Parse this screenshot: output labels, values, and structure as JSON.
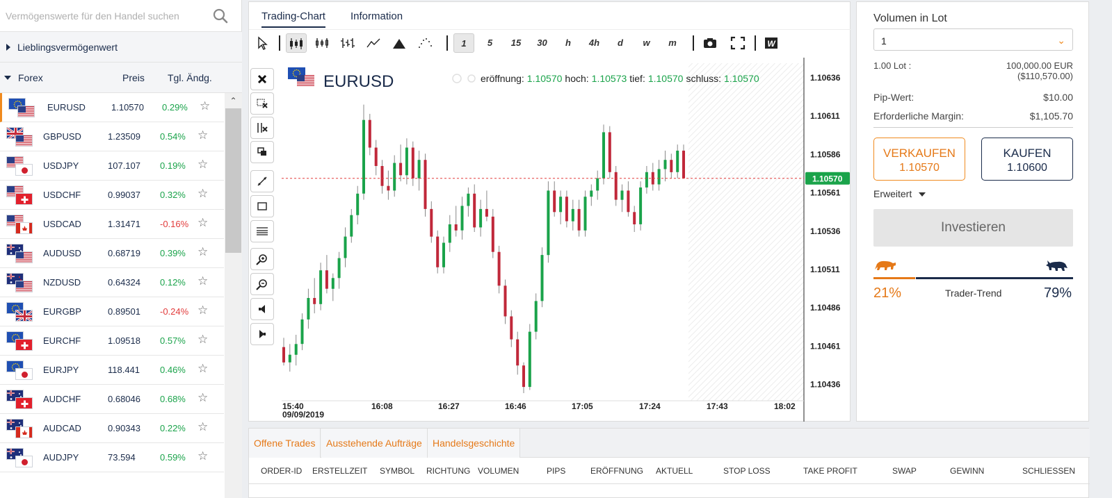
{
  "search": {
    "placeholder": "Vermögenswerte für den Handel suchen"
  },
  "sidebar": {
    "favorites_label": "Lieblingsvermögenwert",
    "forex_label": "Forex",
    "col_price": "Preis",
    "col_change": "Tgl. Ändg.",
    "items": [
      {
        "symbol": "EURUSD",
        "price": "1.10570",
        "change": "0.29%",
        "dir": "pos",
        "f1": "eu",
        "f2": "us"
      },
      {
        "symbol": "GBPUSD",
        "price": "1.23509",
        "change": "0.54%",
        "dir": "pos",
        "f1": "gb",
        "f2": "us"
      },
      {
        "symbol": "USDJPY",
        "price": "107.107",
        "change": "0.19%",
        "dir": "pos",
        "f1": "us",
        "f2": "jp"
      },
      {
        "symbol": "USDCHF",
        "price": "0.99037",
        "change": "0.32%",
        "dir": "pos",
        "f1": "us",
        "f2": "ch"
      },
      {
        "symbol": "USDCAD",
        "price": "1.31471",
        "change": "-0.16%",
        "dir": "neg",
        "f1": "us",
        "f2": "ca"
      },
      {
        "symbol": "AUDUSD",
        "price": "0.68719",
        "change": "0.39%",
        "dir": "pos",
        "f1": "au",
        "f2": "us"
      },
      {
        "symbol": "NZDUSD",
        "price": "0.64324",
        "change": "0.12%",
        "dir": "pos",
        "f1": "nz",
        "f2": "us"
      },
      {
        "symbol": "EURGBP",
        "price": "0.89501",
        "change": "-0.24%",
        "dir": "neg",
        "f1": "eu",
        "f2": "gb"
      },
      {
        "symbol": "EURCHF",
        "price": "1.09518",
        "change": "0.57%",
        "dir": "pos",
        "f1": "eu",
        "f2": "ch"
      },
      {
        "symbol": "EURJPY",
        "price": "118.441",
        "change": "0.46%",
        "dir": "pos",
        "f1": "eu",
        "f2": "jp"
      },
      {
        "symbol": "AUDCHF",
        "price": "0.68046",
        "change": "0.68%",
        "dir": "pos",
        "f1": "au",
        "f2": "ch"
      },
      {
        "symbol": "AUDCAD",
        "price": "0.90343",
        "change": "0.22%",
        "dir": "pos",
        "f1": "au",
        "f2": "ca"
      },
      {
        "symbol": "AUDJPY",
        "price": "73.594",
        "change": "0.59%",
        "dir": "pos",
        "f1": "au",
        "f2": "jp"
      }
    ]
  },
  "tabs": {
    "chart": "Trading-Chart",
    "info": "Information"
  },
  "toolbar": {
    "chart_types": [
      "candles-icon",
      "bars-icon",
      "ohlc-icon",
      "line-icon",
      "area-icon",
      "dots-icon"
    ],
    "timeframes": [
      "1",
      "5",
      "15",
      "30",
      "h",
      "4h",
      "d",
      "w",
      "m"
    ],
    "active_timeframe": "1",
    "extras": [
      "camera-icon",
      "fullscreen-icon",
      "w-icon"
    ]
  },
  "chart": {
    "symbol": "EURUSD",
    "ohlc_labels": {
      "open": "eröffnung:",
      "high": "hoch:",
      "low": "tief:",
      "close": "schluss:"
    },
    "ohlc_values": {
      "open": "1.10570",
      "high": "1.10573",
      "low": "1.10570",
      "close": "1.10570"
    },
    "current_price": "1.10570",
    "date_label": "09/09/2019",
    "colors": {
      "up": "#1aa34a",
      "down": "#c0283a",
      "price_line": "#e23b3b",
      "price_badge": "#1aa34a"
    }
  },
  "chart_data": {
    "type": "candlestick",
    "title": "EURUSD",
    "ylim": [
      1.10425,
      1.10645
    ],
    "y_ticks": [
      "1.10636",
      "1.10611",
      "1.10586",
      "1.10561",
      "1.10536",
      "1.10511",
      "1.10486",
      "1.10461",
      "1.10436"
    ],
    "x_ticks": [
      "15:40",
      "16:08",
      "16:27",
      "16:46",
      "17:05",
      "17:24",
      "17:43",
      "18:02"
    ],
    "series": [
      {
        "o": 1.1046,
        "h": 1.10466,
        "l": 1.10448,
        "c": 1.1045
      },
      {
        "o": 1.1045,
        "h": 1.10462,
        "l": 1.10444,
        "c": 1.10455
      },
      {
        "o": 1.10455,
        "h": 1.10468,
        "l": 1.10448,
        "c": 1.10462
      },
      {
        "o": 1.10462,
        "h": 1.10482,
        "l": 1.10458,
        "c": 1.10478
      },
      {
        "o": 1.10478,
        "h": 1.10498,
        "l": 1.10472,
        "c": 1.10492
      },
      {
        "o": 1.10492,
        "h": 1.10505,
        "l": 1.10482,
        "c": 1.10488
      },
      {
        "o": 1.10488,
        "h": 1.10515,
        "l": 1.10484,
        "c": 1.1051
      },
      {
        "o": 1.1051,
        "h": 1.1052,
        "l": 1.10495,
        "c": 1.10498
      },
      {
        "o": 1.10498,
        "h": 1.10508,
        "l": 1.1049,
        "c": 1.10505
      },
      {
        "o": 1.10505,
        "h": 1.10522,
        "l": 1.10498,
        "c": 1.10518
      },
      {
        "o": 1.10518,
        "h": 1.10538,
        "l": 1.10512,
        "c": 1.10532
      },
      {
        "o": 1.10532,
        "h": 1.1055,
        "l": 1.10528,
        "c": 1.10546
      },
      {
        "o": 1.10546,
        "h": 1.10565,
        "l": 1.1054,
        "c": 1.1056
      },
      {
        "o": 1.1056,
        "h": 1.10618,
        "l": 1.10556,
        "c": 1.10608
      },
      {
        "o": 1.10608,
        "h": 1.10612,
        "l": 1.10585,
        "c": 1.1059
      },
      {
        "o": 1.1059,
        "h": 1.10595,
        "l": 1.10572,
        "c": 1.10578
      },
      {
        "o": 1.10578,
        "h": 1.10582,
        "l": 1.1056,
        "c": 1.10565
      },
      {
        "o": 1.10565,
        "h": 1.10575,
        "l": 1.10556,
        "c": 1.10562
      },
      {
        "o": 1.10562,
        "h": 1.10585,
        "l": 1.10558,
        "c": 1.1058
      },
      {
        "o": 1.1058,
        "h": 1.10592,
        "l": 1.10568,
        "c": 1.10572
      },
      {
        "o": 1.10572,
        "h": 1.10596,
        "l": 1.10566,
        "c": 1.1059
      },
      {
        "o": 1.1059,
        "h": 1.10594,
        "l": 1.10565,
        "c": 1.1057
      },
      {
        "o": 1.1057,
        "h": 1.10588,
        "l": 1.10562,
        "c": 1.10582
      },
      {
        "o": 1.10582,
        "h": 1.10586,
        "l": 1.10545,
        "c": 1.1055
      },
      {
        "o": 1.1055,
        "h": 1.10555,
        "l": 1.10528,
        "c": 1.10532
      },
      {
        "o": 1.10532,
        "h": 1.10536,
        "l": 1.10508,
        "c": 1.10512
      },
      {
        "o": 1.10512,
        "h": 1.10532,
        "l": 1.10508,
        "c": 1.10528
      },
      {
        "o": 1.10528,
        "h": 1.10546,
        "l": 1.10522,
        "c": 1.1054
      },
      {
        "o": 1.1054,
        "h": 1.10552,
        "l": 1.10532,
        "c": 1.10536
      },
      {
        "o": 1.10536,
        "h": 1.10558,
        "l": 1.1053,
        "c": 1.10552
      },
      {
        "o": 1.10552,
        "h": 1.10564,
        "l": 1.10545,
        "c": 1.1056
      },
      {
        "o": 1.1056,
        "h": 1.10566,
        "l": 1.10535,
        "c": 1.10538
      },
      {
        "o": 1.10538,
        "h": 1.10556,
        "l": 1.10532,
        "c": 1.1055
      },
      {
        "o": 1.1055,
        "h": 1.10562,
        "l": 1.10542,
        "c": 1.10545
      },
      {
        "o": 1.10545,
        "h": 1.1055,
        "l": 1.10518,
        "c": 1.10522
      },
      {
        "o": 1.10522,
        "h": 1.10526,
        "l": 1.10495,
        "c": 1.105
      },
      {
        "o": 1.105,
        "h": 1.10504,
        "l": 1.10475,
        "c": 1.1048
      },
      {
        "o": 1.1048,
        "h": 1.10484,
        "l": 1.1046,
        "c": 1.10465
      },
      {
        "o": 1.10465,
        "h": 1.1047,
        "l": 1.10442,
        "c": 1.10448
      },
      {
        "o": 1.10448,
        "h": 1.1045,
        "l": 1.1043,
        "c": 1.10434
      },
      {
        "o": 1.10434,
        "h": 1.10475,
        "l": 1.10432,
        "c": 1.1047
      },
      {
        "o": 1.1047,
        "h": 1.10495,
        "l": 1.10465,
        "c": 1.1049
      },
      {
        "o": 1.1049,
        "h": 1.10525,
        "l": 1.10486,
        "c": 1.1052
      },
      {
        "o": 1.1052,
        "h": 1.10568,
        "l": 1.10515,
        "c": 1.10562
      },
      {
        "o": 1.10562,
        "h": 1.10568,
        "l": 1.10545,
        "c": 1.10548
      },
      {
        "o": 1.10548,
        "h": 1.10562,
        "l": 1.1054,
        "c": 1.10558
      },
      {
        "o": 1.10558,
        "h": 1.10562,
        "l": 1.10538,
        "c": 1.10542
      },
      {
        "o": 1.10542,
        "h": 1.10556,
        "l": 1.10536,
        "c": 1.1055
      },
      {
        "o": 1.1055,
        "h": 1.10556,
        "l": 1.10532,
        "c": 1.10536
      },
      {
        "o": 1.10536,
        "h": 1.10562,
        "l": 1.10532,
        "c": 1.10558
      },
      {
        "o": 1.10558,
        "h": 1.10566,
        "l": 1.10552,
        "c": 1.10562
      },
      {
        "o": 1.10562,
        "h": 1.10575,
        "l": 1.10556,
        "c": 1.1057
      },
      {
        "o": 1.1057,
        "h": 1.10605,
        "l": 1.10566,
        "c": 1.106
      },
      {
        "o": 1.106,
        "h": 1.10604,
        "l": 1.1057,
        "c": 1.10574
      },
      {
        "o": 1.10574,
        "h": 1.10578,
        "l": 1.10552,
        "c": 1.10556
      },
      {
        "o": 1.10556,
        "h": 1.10566,
        "l": 1.10548,
        "c": 1.10562
      },
      {
        "o": 1.10562,
        "h": 1.10568,
        "l": 1.10545,
        "c": 1.10548
      },
      {
        "o": 1.10548,
        "h": 1.10552,
        "l": 1.10535,
        "c": 1.1054
      },
      {
        "o": 1.1054,
        "h": 1.10568,
        "l": 1.10536,
        "c": 1.10564
      },
      {
        "o": 1.10564,
        "h": 1.10578,
        "l": 1.1056,
        "c": 1.10574
      },
      {
        "o": 1.10574,
        "h": 1.1058,
        "l": 1.10562,
        "c": 1.10566
      },
      {
        "o": 1.10566,
        "h": 1.10582,
        "l": 1.10562,
        "c": 1.10576
      },
      {
        "o": 1.10576,
        "h": 1.10588,
        "l": 1.10568,
        "c": 1.10582
      },
      {
        "o": 1.10582,
        "h": 1.10586,
        "l": 1.1057,
        "c": 1.10574
      },
      {
        "o": 1.10574,
        "h": 1.10592,
        "l": 1.1057,
        "c": 1.10588
      },
      {
        "o": 1.10588,
        "h": 1.10592,
        "l": 1.1057,
        "c": 1.1057
      }
    ]
  },
  "right": {
    "volume_label": "Volumen in Lot",
    "volume_value": "1",
    "lot_label": "1.00 Lot :",
    "lot_value_1": "100,000.00 EUR",
    "lot_value_2": "($110,570.00)",
    "pip_label": "Pip-Wert:",
    "pip_value": "$10.00",
    "margin_label": "Erforderliche Margin:",
    "margin_value": "$1,105.70",
    "sell_label": "VERKAUFEN",
    "sell_price": "1.10570",
    "buy_label": "KAUFEN",
    "buy_price": "1.10600",
    "advanced_label": "Erweitert",
    "invest_label": "Investieren",
    "trend_label": "Trader-Trend",
    "trend_bear_pct": "21%",
    "trend_bull_pct": "79%",
    "trend_bear_share": 0.21
  },
  "bottom": {
    "tabs": [
      "Offene Trades",
      "Ausstehende Aufträge",
      "Handelsgeschichte"
    ],
    "columns": [
      "ORDER-ID",
      "ERSTELLZEIT",
      "SYMBOL",
      "RICHTUNG",
      "VOLUMEN",
      "PIPS",
      "ERÖFFNUNG",
      "AKTUELL",
      "STOP LOSS",
      "TAKE PROFIT",
      "SWAP",
      "GEWINN",
      "SCHLIESSEN"
    ]
  }
}
